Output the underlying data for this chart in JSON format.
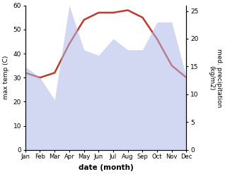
{
  "months": [
    "Jan",
    "Feb",
    "Mar",
    "Apr",
    "May",
    "Jun",
    "Jul",
    "Aug",
    "Sep",
    "Oct",
    "Nov",
    "Dec"
  ],
  "temp_max": [
    32,
    30,
    32,
    44,
    54,
    57,
    57,
    58,
    55,
    46,
    35,
    30
  ],
  "precipitation": [
    15,
    13,
    9,
    26,
    18,
    17,
    20,
    18,
    18,
    23,
    23,
    13
  ],
  "temp_ylim": [
    0,
    60
  ],
  "precip_ylim": [
    0,
    26
  ],
  "temp_yticks": [
    0,
    10,
    20,
    30,
    40,
    50,
    60
  ],
  "precip_yticks": [
    0,
    5,
    10,
    15,
    20,
    25
  ],
  "fill_color": "#b0b8e8",
  "fill_alpha": 0.55,
  "line_color": "#c0392b",
  "line_width": 1.8,
  "xlabel": "date (month)",
  "ylabel_left": "max temp (C)",
  "ylabel_right": "med. precipitation\n(kg/m2)",
  "bg_color": "#ffffff"
}
